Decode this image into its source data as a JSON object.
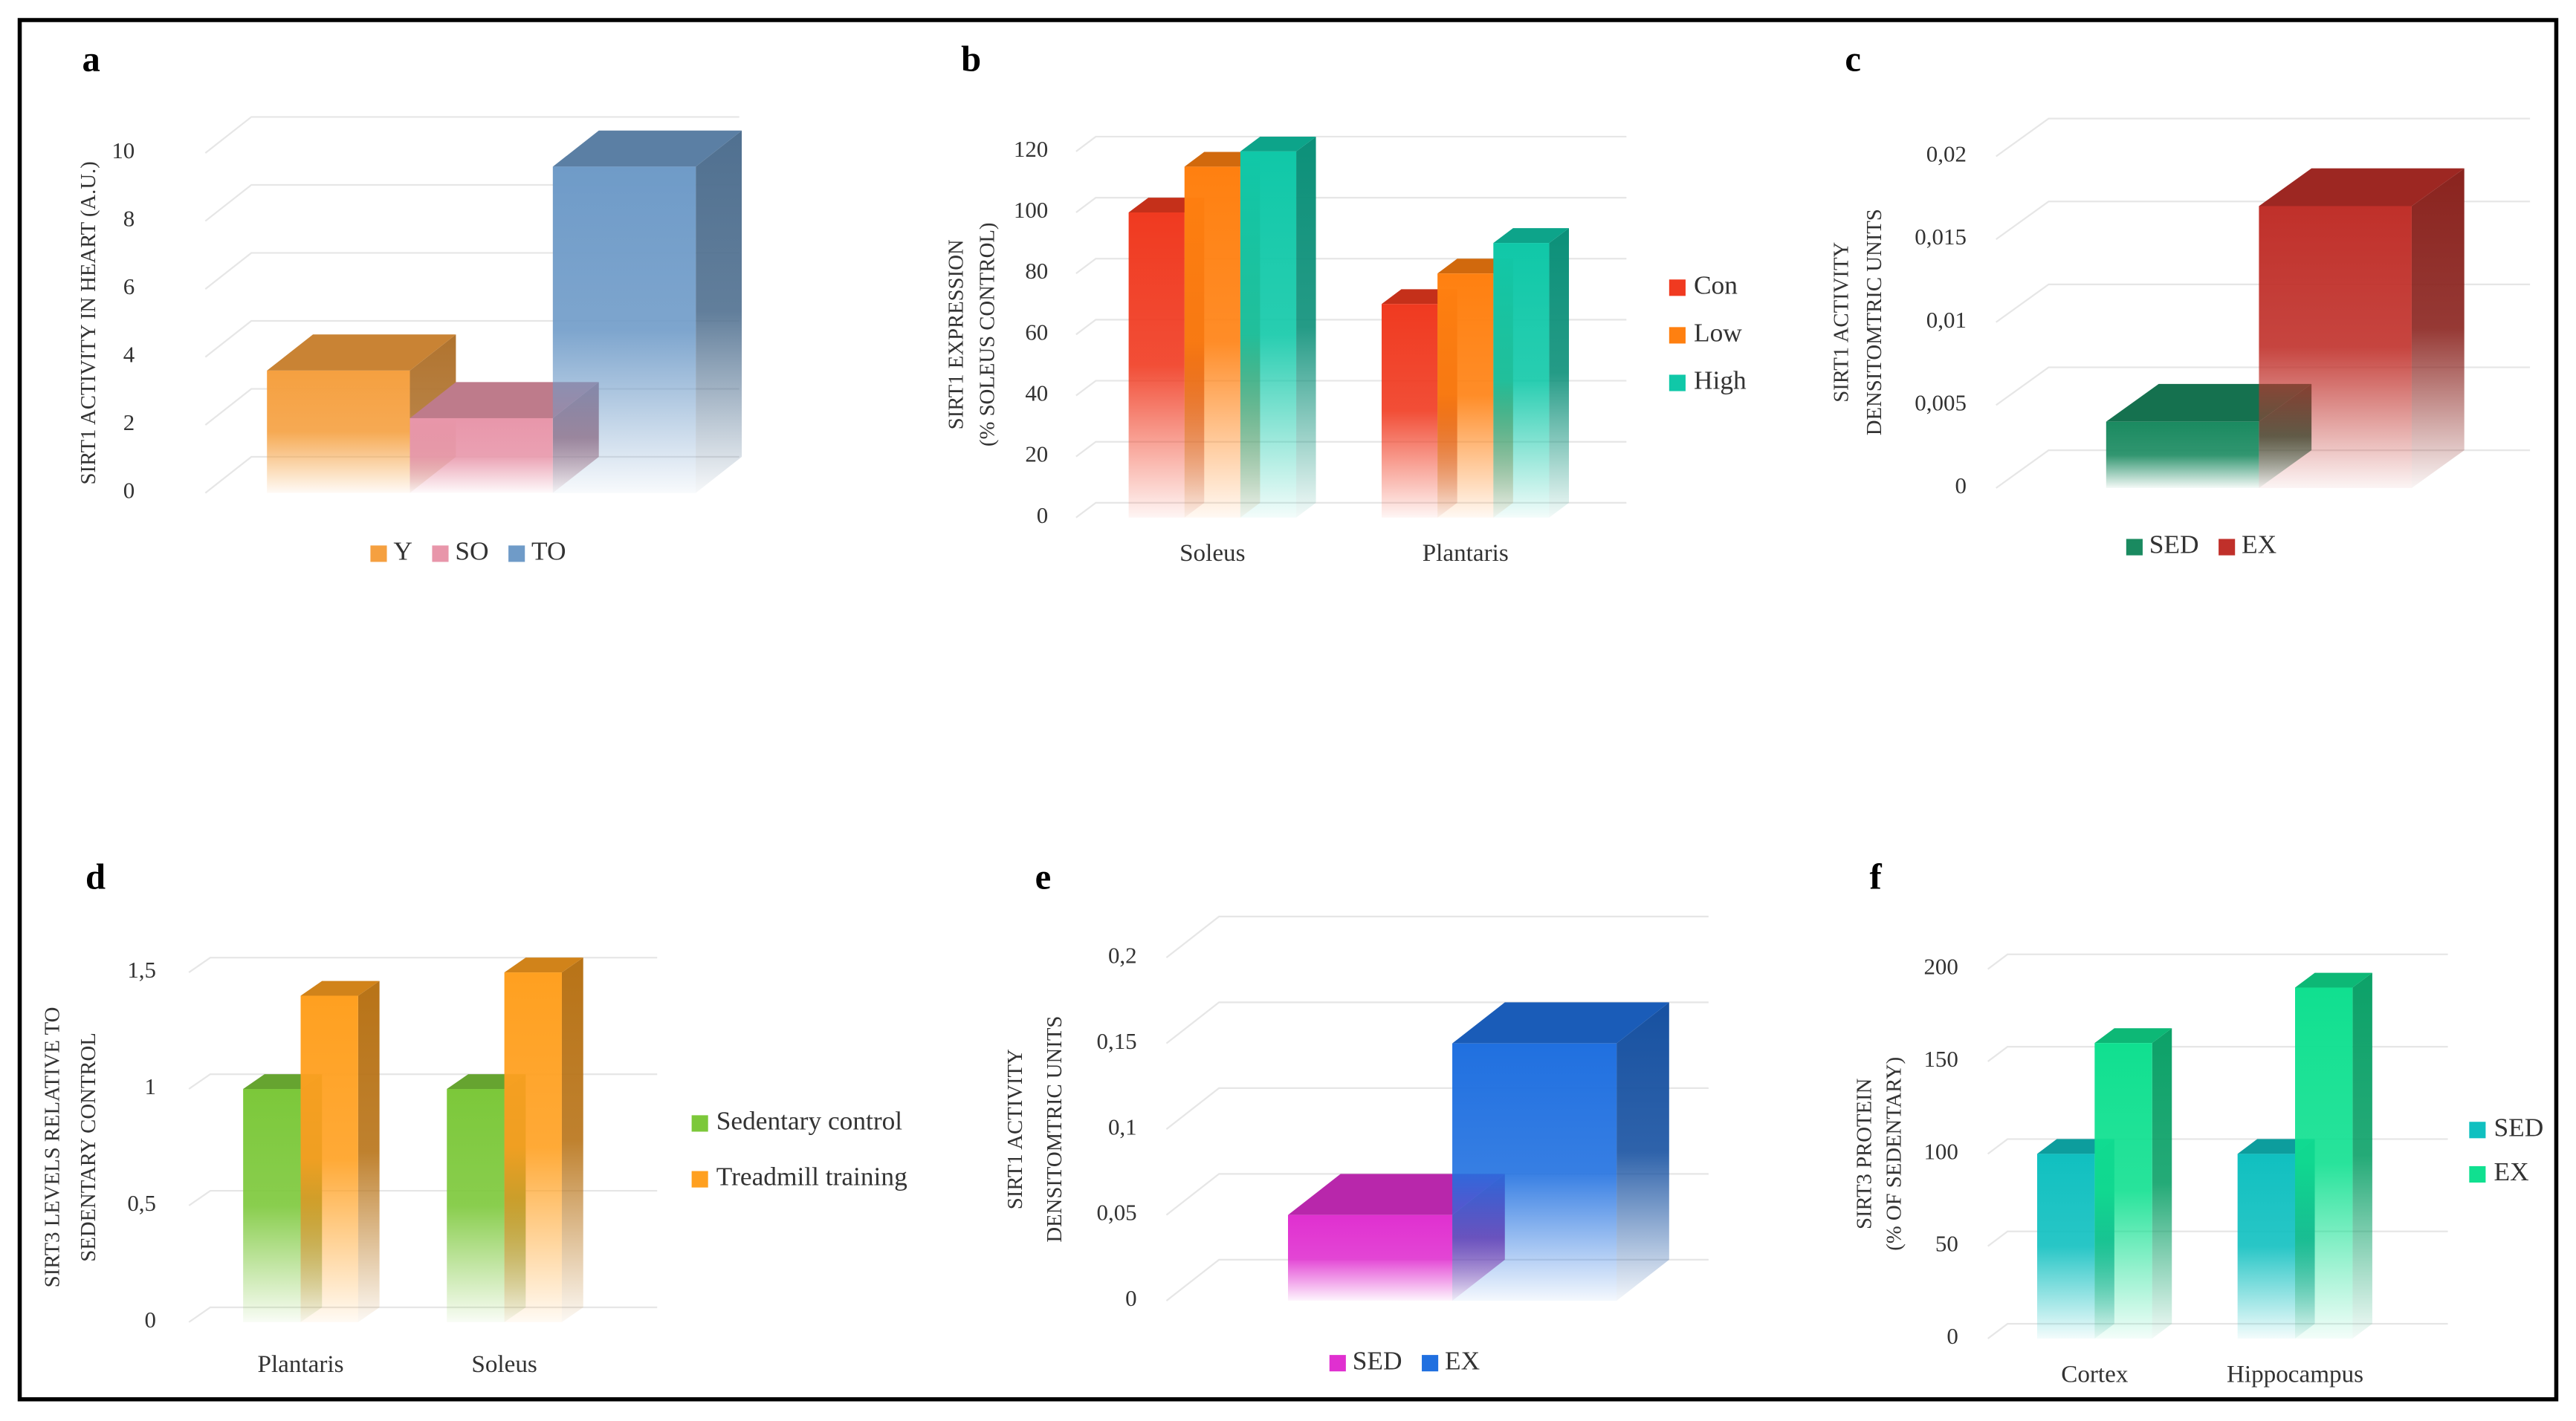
{
  "chart_data": [
    {
      "type": "bar",
      "panel": "a",
      "ylabel": [
        "SIRT1 ACTIVITY IN HEART (A.U.)"
      ],
      "ylim": [
        0,
        10
      ],
      "yticks": [
        0,
        2,
        4,
        6,
        8,
        10
      ],
      "legend": "bottom",
      "grid": true,
      "series": [
        {
          "name": "Y",
          "color": "#f5a040",
          "values": [
            3.6
          ]
        },
        {
          "name": "SO",
          "color": "#e896aa",
          "values": [
            2.2
          ]
        },
        {
          "name": "TO",
          "color": "#6f9bc8",
          "values": [
            9.6
          ]
        }
      ]
    },
    {
      "type": "bar",
      "panel": "b",
      "ylabel": [
        "SIRT1 EXPRESSION",
        "(% SOLEUS CONTROL)"
      ],
      "ylim": [
        0,
        120
      ],
      "yticks": [
        0,
        20,
        40,
        60,
        80,
        100,
        120
      ],
      "legend": "right",
      "grid": true,
      "categories": [
        "Soleus",
        "Plantaris"
      ],
      "series": [
        {
          "name": "Con",
          "color": "#f03a20",
          "values": [
            100,
            70
          ]
        },
        {
          "name": "Low",
          "color": "#ff8010",
          "values": [
            115,
            80
          ]
        },
        {
          "name": "High",
          "color": "#10c8a8",
          "values": [
            120,
            90
          ]
        }
      ]
    },
    {
      "type": "bar",
      "panel": "c",
      "ylabel": [
        "SIRT1 ACTIVITY",
        "DENSITOMTRIC UNITS"
      ],
      "ylim": [
        0,
        0.02
      ],
      "yticks": [
        0,
        {
          "value": 0.005,
          "label": "0,005"
        },
        {
          "value": 0.01,
          "label": "0,01"
        },
        {
          "value": 0.015,
          "label": "0,015"
        },
        {
          "value": 0.02,
          "label": "0,02"
        }
      ],
      "legend": "bottom",
      "grid": true,
      "series": [
        {
          "name": "SED",
          "color": "#1a8a60",
          "values": [
            0.004
          ]
        },
        {
          "name": "EX",
          "color": "#c0302a",
          "values": [
            0.017
          ]
        }
      ]
    },
    {
      "type": "bar",
      "panel": "d",
      "ylabel": [
        "SIRT3 LEVELS  RELATIVE TO",
        "SEDENTARY CONTROL"
      ],
      "ylim": [
        0,
        1.5
      ],
      "yticks": [
        0,
        {
          "value": 0.5,
          "label": "0,5"
        },
        1,
        {
          "value": 1.5,
          "label": "1,5"
        }
      ],
      "legend": "right",
      "grid": true,
      "categories": [
        "Plantaris",
        "Soleus"
      ],
      "series": [
        {
          "name": "Sedentary control",
          "color": "#7cc83a",
          "values": [
            1,
            1
          ]
        },
        {
          "name": "Treadmill training",
          "color": "#ffa020",
          "values": [
            1.4,
            1.5
          ]
        }
      ]
    },
    {
      "type": "bar",
      "panel": "e",
      "ylabel": [
        "SIRT1 ACTIVITY",
        "DENSITOMTRIC UNITS"
      ],
      "ylim": [
        0,
        0.2
      ],
      "yticks": [
        0,
        {
          "value": 0.05,
          "label": "0,05"
        },
        {
          "value": 0.1,
          "label": "0,1"
        },
        {
          "value": 0.15,
          "label": "0,15"
        },
        {
          "value": 0.2,
          "label": "0,2"
        }
      ],
      "legend": "bottom",
      "grid": true,
      "series": [
        {
          "name": "SED",
          "color": "#e030d0",
          "values": [
            0.05
          ]
        },
        {
          "name": "EX",
          "color": "#2070e0",
          "values": [
            0.15
          ]
        }
      ]
    },
    {
      "type": "bar",
      "panel": "f",
      "ylabel": [
        "SIRT3 PROTEIN",
        "(% OF SEDENTARY)"
      ],
      "ylim": [
        0,
        200
      ],
      "yticks": [
        0,
        50,
        100,
        150,
        200
      ],
      "legend": "right",
      "grid": true,
      "categories": [
        "Cortex",
        "Hippocampus"
      ],
      "series": [
        {
          "name": "SED",
          "color": "#10c0c0",
          "values": [
            100,
            100
          ]
        },
        {
          "name": "EX",
          "color": "#10e090",
          "values": [
            160,
            190
          ]
        }
      ]
    }
  ]
}
